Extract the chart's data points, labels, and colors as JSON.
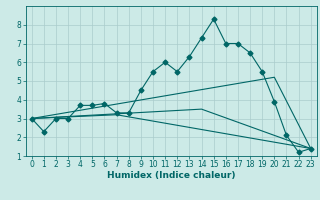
{
  "title": "",
  "xlabel": "Humidex (Indice chaleur)",
  "ylabel": "",
  "bg_color": "#cceae7",
  "grid_color": "#aacccc",
  "line_color": "#006666",
  "xlim": [
    -0.5,
    23.5
  ],
  "ylim": [
    1,
    9
  ],
  "xticks": [
    0,
    1,
    2,
    3,
    4,
    5,
    6,
    7,
    8,
    9,
    10,
    11,
    12,
    13,
    14,
    15,
    16,
    17,
    18,
    19,
    20,
    21,
    22,
    23
  ],
  "yticks": [
    1,
    2,
    3,
    4,
    5,
    6,
    7,
    8
  ],
  "series1_x": [
    0,
    1,
    2,
    3,
    4,
    5,
    6,
    7,
    8,
    9,
    10,
    11,
    12,
    13,
    14,
    15,
    16,
    17,
    18,
    19,
    20,
    21,
    22,
    23
  ],
  "series1_y": [
    3.0,
    2.3,
    3.0,
    3.0,
    3.7,
    3.7,
    3.8,
    3.3,
    3.3,
    4.5,
    5.5,
    6.0,
    5.5,
    6.3,
    7.3,
    8.3,
    7.0,
    7.0,
    6.5,
    5.5,
    3.9,
    2.1,
    1.2,
    1.4
  ],
  "series2_x": [
    0,
    7,
    23
  ],
  "series2_y": [
    3.0,
    3.2,
    1.4
  ],
  "series3_x": [
    0,
    14,
    23
  ],
  "series3_y": [
    3.0,
    3.5,
    1.4
  ],
  "series4_x": [
    0,
    20,
    23
  ],
  "series4_y": [
    3.0,
    5.2,
    1.4
  ],
  "tick_fontsize": 5.5,
  "xlabel_fontsize": 6.5,
  "marker_size": 2.5,
  "line_width": 0.8
}
